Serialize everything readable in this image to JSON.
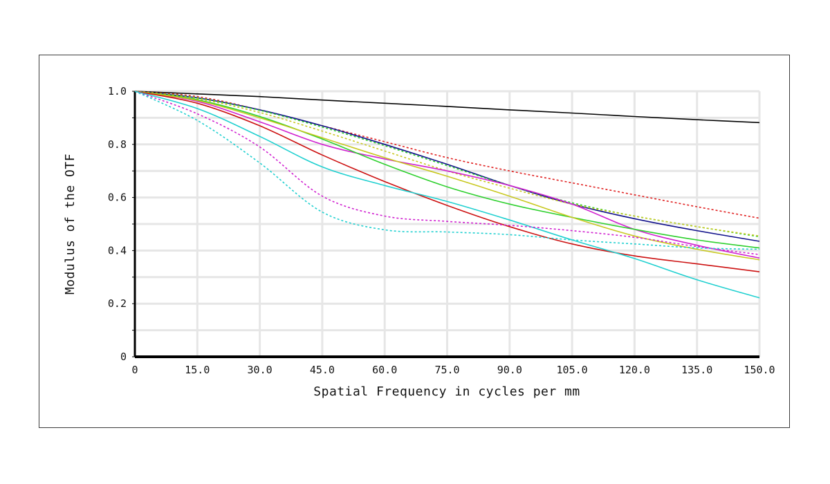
{
  "chart_data": {
    "type": "line",
    "title": "",
    "xlabel": "Spatial Frequency in cycles per mm",
    "ylabel": "Modulus of the OTF",
    "xlim": [
      0,
      150
    ],
    "ylim": [
      0,
      1
    ],
    "grid": true,
    "x_ticks": [
      "0",
      "15.0",
      "30.0",
      "45.0",
      "60.0",
      "75.0",
      "90.0",
      "105.0",
      "120.0",
      "135.0",
      "150.0"
    ],
    "y_ticks": [
      "0",
      "0.2",
      "0.4",
      "0.6",
      "0.8",
      "1.0"
    ],
    "x": [
      0,
      15,
      30,
      45,
      60,
      75,
      90,
      105,
      120,
      135,
      150
    ],
    "series": [
      {
        "color": "#000000",
        "dash": "solid",
        "values": [
          1.0,
          0.99,
          0.98,
          0.967,
          0.955,
          0.943,
          0.93,
          0.918,
          0.905,
          0.893,
          0.882
        ]
      },
      {
        "color": "#e02020",
        "dash": "dotted",
        "values": [
          1.0,
          0.98,
          0.93,
          0.87,
          0.81,
          0.75,
          0.7,
          0.655,
          0.61,
          0.565,
          0.522
        ]
      },
      {
        "color": "#10108a",
        "dash": "solid",
        "values": [
          1.0,
          0.975,
          0.93,
          0.87,
          0.8,
          0.725,
          0.645,
          0.575,
          0.52,
          0.475,
          0.435
        ]
      },
      {
        "color": "#2ed02e",
        "dash": "dotted",
        "values": [
          1.0,
          0.975,
          0.928,
          0.865,
          0.795,
          0.72,
          0.645,
          0.58,
          0.53,
          0.49,
          0.452
        ]
      },
      {
        "color": "#c8c820",
        "dash": "dotted",
        "values": [
          1.0,
          0.972,
          0.92,
          0.85,
          0.775,
          0.7,
          0.635,
          0.575,
          0.53,
          0.49,
          0.455
        ]
      },
      {
        "color": "#d020d0",
        "dash": "solid",
        "values": [
          1.0,
          0.962,
          0.885,
          0.8,
          0.745,
          0.7,
          0.645,
          0.575,
          0.48,
          0.42,
          0.372
        ]
      },
      {
        "color": "#2ed02e",
        "dash": "solid",
        "values": [
          1.0,
          0.968,
          0.905,
          0.82,
          0.725,
          0.64,
          0.575,
          0.525,
          0.48,
          0.44,
          0.41
        ]
      },
      {
        "color": "#c8c820",
        "dash": "solid",
        "values": [
          1.0,
          0.965,
          0.9,
          0.825,
          0.75,
          0.68,
          0.605,
          0.525,
          0.455,
          0.405,
          0.365
        ]
      },
      {
        "color": "#cc1010",
        "dash": "solid",
        "values": [
          1.0,
          0.955,
          0.87,
          0.76,
          0.66,
          0.57,
          0.49,
          0.425,
          0.38,
          0.35,
          0.32
        ]
      },
      {
        "color": "#20d0d0",
        "dash": "solid",
        "values": [
          1.0,
          0.935,
          0.83,
          0.715,
          0.645,
          0.585,
          0.515,
          0.44,
          0.37,
          0.29,
          0.222
        ]
      },
      {
        "color": "#d020d0",
        "dash": "dotted",
        "values": [
          1.0,
          0.915,
          0.79,
          0.605,
          0.53,
          0.51,
          0.495,
          0.475,
          0.45,
          0.415,
          0.385
        ]
      },
      {
        "color": "#20d0d0",
        "dash": "dotted",
        "values": [
          1.0,
          0.89,
          0.73,
          0.545,
          0.478,
          0.47,
          0.46,
          0.44,
          0.425,
          0.41,
          0.405
        ]
      }
    ]
  }
}
